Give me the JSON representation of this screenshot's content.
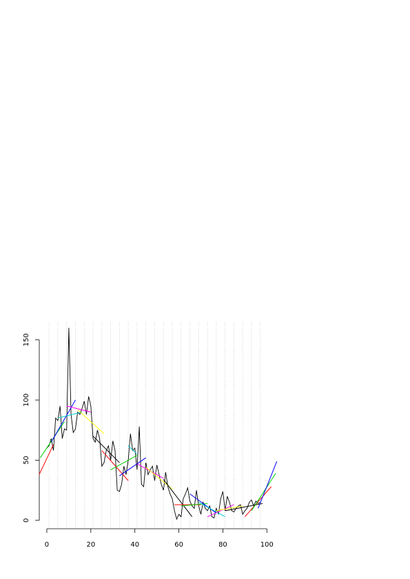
{
  "chart_data": {
    "type": "line",
    "x": [
      0,
      1,
      2,
      3,
      4,
      5,
      6,
      7,
      8,
      9,
      10,
      11,
      12,
      13,
      14,
      15,
      16,
      17,
      18,
      19,
      20,
      21,
      22,
      23,
      24,
      25,
      26,
      27,
      28,
      29,
      30,
      31,
      32,
      33,
      34,
      35,
      36,
      37,
      38,
      39,
      40,
      41,
      42,
      43,
      44,
      45,
      46,
      47,
      48,
      49,
      50,
      51,
      52,
      53,
      54,
      55,
      56,
      57,
      58,
      59,
      60,
      61,
      62,
      63,
      64,
      65,
      66,
      67,
      68,
      69,
      70,
      71,
      72,
      73,
      74,
      75,
      76,
      77,
      78,
      79,
      80,
      81,
      82,
      83,
      84,
      85,
      86,
      87,
      88,
      89,
      90,
      91,
      92,
      93,
      94,
      95,
      96,
      97
    ],
    "series": [
      {
        "color": "#000000",
        "values": [
          60,
          62,
          68,
          58,
          85,
          83,
          95,
          68,
          76,
          75,
          160,
          88,
          73,
          76,
          90,
          88,
          93,
          99,
          88,
          103,
          95,
          68,
          65,
          75,
          68,
          45,
          48,
          58,
          62,
          50,
          66,
          58,
          25,
          24,
          30,
          45,
          38,
          50,
          72,
          58,
          60,
          42,
          78,
          30,
          28,
          48,
          38,
          42,
          45,
          33,
          46,
          38,
          30,
          25,
          40,
          28,
          22,
          18,
          8,
          1,
          5,
          3,
          18,
          22,
          27,
          16,
          12,
          10,
          25,
          12,
          5,
          15,
          10,
          8,
          12,
          3,
          2,
          10,
          5,
          18,
          24,
          8,
          20,
          15,
          8,
          7,
          10,
          12,
          13,
          5,
          8,
          10,
          15,
          17,
          12,
          16,
          14,
          15
        ]
      }
    ],
    "segments": [
      {
        "color": "#ff0000",
        "x": [
          -3.5,
          3
        ],
        "y": [
          38,
          63
        ]
      },
      {
        "color": "#00cd00",
        "x": [
          -3,
          8
        ],
        "y": [
          52,
          82
        ]
      },
      {
        "color": "#0000ff",
        "x": [
          2,
          13
        ],
        "y": [
          65,
          100
        ]
      },
      {
        "color": "#00cdcd",
        "x": [
          5,
          16
        ],
        "y": [
          85,
          90
        ]
      },
      {
        "color": "#ff00ff",
        "x": [
          9,
          20
        ],
        "y": [
          95,
          90
        ]
      },
      {
        "color": "#ffff00",
        "x": [
          14,
          26
        ],
        "y": [
          92,
          72
        ]
      },
      {
        "color": "#000000",
        "x": [
          21,
          33
        ],
        "y": [
          70,
          48
        ]
      },
      {
        "color": "#ff0000",
        "x": [
          25,
          37
        ],
        "y": [
          58,
          33
        ]
      },
      {
        "color": "#00cd00",
        "x": [
          29,
          41
        ],
        "y": [
          42,
          54
        ]
      },
      {
        "color": "#0000ff",
        "x": [
          33,
          45
        ],
        "y": [
          37,
          52
        ]
      },
      {
        "color": "#00cdcd",
        "x": [
          37,
          41
        ],
        "y": [
          62,
          55
        ]
      },
      {
        "color": "#ff00ff",
        "x": [
          41,
          53
        ],
        "y": [
          47,
          35
        ]
      },
      {
        "color": "#ffff00",
        "x": [
          45,
          57
        ],
        "y": [
          44,
          26
        ]
      },
      {
        "color": "#000000",
        "x": [
          53,
          66
        ],
        "y": [
          34,
          3
        ]
      },
      {
        "color": "#ff0000",
        "x": [
          58,
          70
        ],
        "y": [
          13,
          13
        ]
      },
      {
        "color": "#00cd00",
        "x": [
          61,
          73
        ],
        "y": [
          12,
          14
        ]
      },
      {
        "color": "#0000ff",
        "x": [
          65,
          77
        ],
        "y": [
          22,
          6
        ]
      },
      {
        "color": "#00cdcd",
        "x": [
          69,
          81
        ],
        "y": [
          15,
          3
        ]
      },
      {
        "color": "#ff00ff",
        "x": [
          73,
          85
        ],
        "y": [
          3,
          13
        ]
      },
      {
        "color": "#ffff00",
        "x": [
          77,
          89
        ],
        "y": [
          8,
          12
        ]
      },
      {
        "color": "#000000",
        "x": [
          81,
          98
        ],
        "y": [
          8,
          14
        ]
      },
      {
        "color": "#ff0000",
        "x": [
          90,
          102
        ],
        "y": [
          3,
          28
        ]
      },
      {
        "color": "#00cd00",
        "x": [
          93,
          104
        ],
        "y": [
          8,
          39
        ]
      },
      {
        "color": "#0000ff",
        "x": [
          96,
          104.5
        ],
        "y": [
          10,
          49
        ]
      }
    ],
    "vlines": [
      1,
      5,
      9,
      13,
      17,
      21,
      25,
      29,
      33,
      37,
      41,
      45,
      49,
      53,
      57,
      61,
      65,
      69,
      73,
      77,
      81,
      85,
      89,
      93,
      97
    ],
    "xlim": [
      -4,
      104.6
    ],
    "ylim": [
      -6.4,
      166.4
    ],
    "xticks": [
      0,
      20,
      40,
      60,
      80,
      100
    ],
    "yticks": [
      0,
      50,
      100,
      150
    ]
  }
}
